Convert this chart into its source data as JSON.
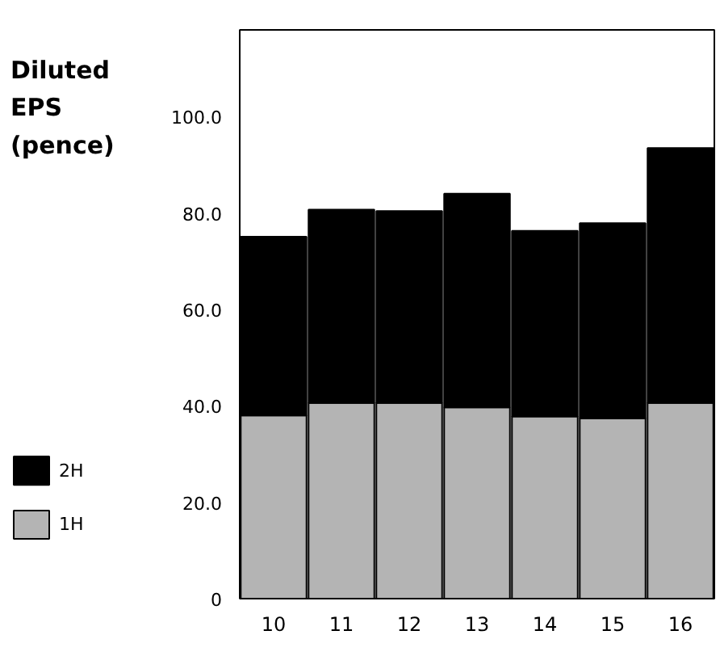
{
  "chart_data": {
    "type": "bar",
    "stacked": true,
    "title": "Diluted EPS (pence)",
    "categories": [
      "10",
      "11",
      "12",
      "13",
      "14",
      "15",
      "16"
    ],
    "series": [
      {
        "name": "1H",
        "color": "#b4b4b4",
        "values": [
          38.0,
          40.6,
          40.6,
          39.7,
          37.8,
          37.4,
          40.6
        ]
      },
      {
        "name": "2H",
        "color": "#000000",
        "values": [
          37.1,
          40.1,
          39.8,
          44.3,
          38.5,
          40.5,
          52.9
        ]
      }
    ],
    "ylim": [
      0,
      118
    ],
    "yticks": [
      0,
      {
        "value": 20,
        "label": "20.0"
      },
      {
        "value": 40,
        "label": "40.0"
      },
      {
        "value": 60,
        "label": "60.0"
      },
      {
        "value": 80,
        "label": "80.0"
      },
      {
        "value": 100,
        "label": "100.0"
      }
    ],
    "grid": false,
    "legend": "bottom left"
  }
}
